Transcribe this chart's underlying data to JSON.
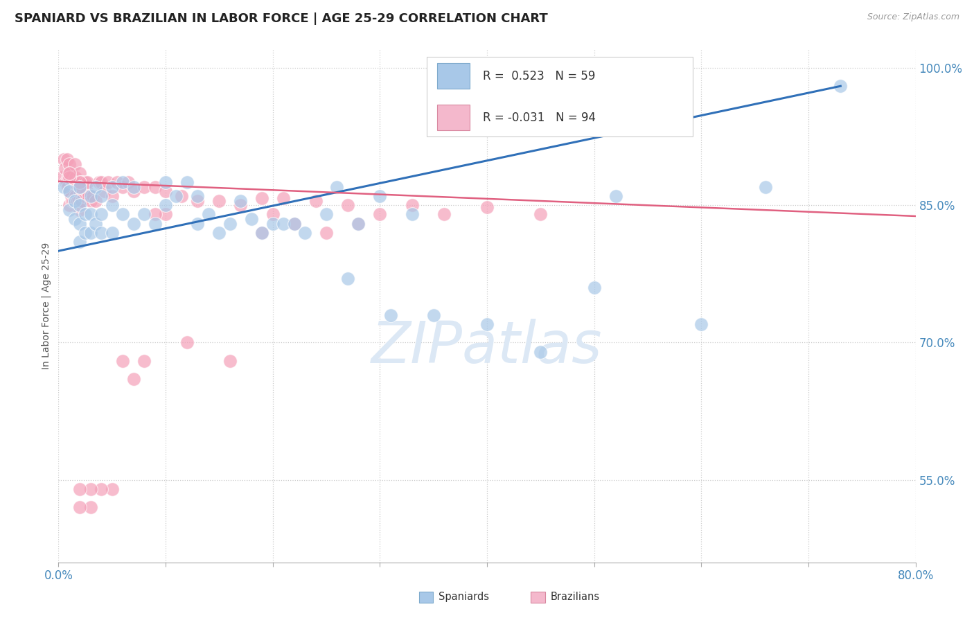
{
  "title": "SPANIARD VS BRAZILIAN IN LABOR FORCE | AGE 25-29 CORRELATION CHART",
  "source": "Source: ZipAtlas.com",
  "ylabel": "In Labor Force | Age 25-29",
  "xlim": [
    0.0,
    0.8
  ],
  "ylim": [
    0.46,
    1.02
  ],
  "xticks": [
    0.0,
    0.1,
    0.2,
    0.3,
    0.4,
    0.5,
    0.6,
    0.7,
    0.8
  ],
  "yticks_right": [
    0.55,
    0.7,
    0.85,
    1.0
  ],
  "ytick_right_labels": [
    "55.0%",
    "70.0%",
    "85.0%",
    "100.0%"
  ],
  "blue_R": 0.523,
  "blue_N": 59,
  "pink_R": -0.031,
  "pink_N": 94,
  "blue_color": "#a8c8e8",
  "pink_color": "#f4a0b8",
  "blue_line_color": "#3070b8",
  "pink_line_color": "#e06080",
  "watermark_color": "#dce8f5",
  "blue_scatter_x": [
    0.005,
    0.01,
    0.01,
    0.015,
    0.015,
    0.02,
    0.02,
    0.02,
    0.02,
    0.025,
    0.025,
    0.03,
    0.03,
    0.03,
    0.035,
    0.035,
    0.04,
    0.04,
    0.04,
    0.05,
    0.05,
    0.05,
    0.06,
    0.06,
    0.07,
    0.07,
    0.08,
    0.09,
    0.1,
    0.1,
    0.11,
    0.12,
    0.13,
    0.13,
    0.14,
    0.15,
    0.16,
    0.17,
    0.18,
    0.19,
    0.2,
    0.21,
    0.22,
    0.23,
    0.25,
    0.26,
    0.27,
    0.28,
    0.3,
    0.31,
    0.33,
    0.35,
    0.4,
    0.45,
    0.5,
    0.52,
    0.6,
    0.66,
    0.73
  ],
  "blue_scatter_y": [
    0.87,
    0.865,
    0.845,
    0.855,
    0.835,
    0.87,
    0.85,
    0.83,
    0.81,
    0.84,
    0.82,
    0.86,
    0.84,
    0.82,
    0.87,
    0.83,
    0.86,
    0.84,
    0.82,
    0.87,
    0.85,
    0.82,
    0.875,
    0.84,
    0.87,
    0.83,
    0.84,
    0.83,
    0.875,
    0.85,
    0.86,
    0.875,
    0.86,
    0.83,
    0.84,
    0.82,
    0.83,
    0.855,
    0.835,
    0.82,
    0.83,
    0.83,
    0.83,
    0.82,
    0.84,
    0.87,
    0.77,
    0.83,
    0.86,
    0.73,
    0.84,
    0.73,
    0.72,
    0.69,
    0.76,
    0.86,
    0.72,
    0.87,
    0.98
  ],
  "pink_scatter_x": [
    0.003,
    0.005,
    0.006,
    0.007,
    0.008,
    0.008,
    0.009,
    0.009,
    0.01,
    0.01,
    0.01,
    0.01,
    0.011,
    0.011,
    0.012,
    0.012,
    0.013,
    0.013,
    0.014,
    0.014,
    0.015,
    0.015,
    0.015,
    0.016,
    0.016,
    0.017,
    0.017,
    0.018,
    0.018,
    0.019,
    0.019,
    0.02,
    0.02,
    0.02,
    0.021,
    0.021,
    0.022,
    0.022,
    0.023,
    0.024,
    0.025,
    0.026,
    0.027,
    0.028,
    0.03,
    0.032,
    0.035,
    0.038,
    0.04,
    0.043,
    0.046,
    0.05,
    0.055,
    0.06,
    0.065,
    0.07,
    0.08,
    0.09,
    0.1,
    0.115,
    0.13,
    0.15,
    0.17,
    0.19,
    0.21,
    0.24,
    0.27,
    0.3,
    0.33,
    0.36,
    0.4,
    0.45,
    0.19,
    0.22,
    0.25,
    0.28,
    0.12,
    0.16,
    0.2,
    0.06,
    0.07,
    0.08,
    0.1,
    0.09,
    0.05,
    0.04,
    0.03,
    0.03,
    0.02,
    0.02,
    0.02,
    0.02,
    0.01,
    0.01
  ],
  "pink_scatter_y": [
    0.88,
    0.9,
    0.89,
    0.875,
    0.9,
    0.875,
    0.88,
    0.87,
    0.895,
    0.88,
    0.865,
    0.85,
    0.885,
    0.865,
    0.88,
    0.86,
    0.875,
    0.855,
    0.875,
    0.855,
    0.895,
    0.875,
    0.855,
    0.88,
    0.86,
    0.875,
    0.855,
    0.875,
    0.855,
    0.875,
    0.855,
    0.885,
    0.865,
    0.845,
    0.875,
    0.855,
    0.875,
    0.855,
    0.87,
    0.86,
    0.875,
    0.865,
    0.875,
    0.86,
    0.855,
    0.86,
    0.855,
    0.875,
    0.875,
    0.865,
    0.875,
    0.86,
    0.875,
    0.87,
    0.875,
    0.865,
    0.87,
    0.87,
    0.865,
    0.86,
    0.855,
    0.855,
    0.85,
    0.858,
    0.858,
    0.855,
    0.85,
    0.84,
    0.85,
    0.84,
    0.848,
    0.84,
    0.82,
    0.83,
    0.82,
    0.83,
    0.7,
    0.68,
    0.84,
    0.68,
    0.66,
    0.68,
    0.84,
    0.84,
    0.54,
    0.54,
    0.54,
    0.52,
    0.54,
    0.52,
    0.87,
    0.875,
    0.88,
    0.885
  ]
}
